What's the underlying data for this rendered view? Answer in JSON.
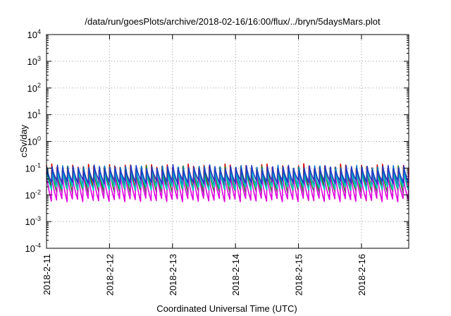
{
  "chart_data": {
    "type": "line",
    "title": "/data/run/goesPlots/archive/2018-02-16/16:00/flux/../bryn/5daysMars.plot",
    "xlabel": "Coordinated Universal Time (UTC)",
    "ylabel": "cSv/day",
    "yscale": "log",
    "ylim": [
      0.0001,
      10000
    ],
    "y_ticks": [
      {
        "base": "10",
        "exp": "-4",
        "value": 0.0001
      },
      {
        "base": "10",
        "exp": "-3",
        "value": 0.001
      },
      {
        "base": "10",
        "exp": "-2",
        "value": 0.01
      },
      {
        "base": "10",
        "exp": "-1",
        "value": 0.1
      },
      {
        "base": "10",
        "exp": "0",
        "value": 1
      },
      {
        "base": "10",
        "exp": "1",
        "value": 10
      },
      {
        "base": "10",
        "exp": "2",
        "value": 100
      },
      {
        "base": "10",
        "exp": "3",
        "value": 1000
      },
      {
        "base": "10",
        "exp": "4",
        "value": 10000
      }
    ],
    "xlim": [
      "2018-02-11",
      "2018-02-16 18:00"
    ],
    "x_ticks": [
      "2018-2-11",
      "2018-2-12",
      "2018-2-13",
      "2018-2-14",
      "2018-2-15",
      "2018-2-16"
    ],
    "grid": true,
    "sawtooth_period_hours": 2,
    "series": [
      {
        "color": "#d40000",
        "peak": 0.115,
        "trough": 0.02
      },
      {
        "color": "#1a8a1a",
        "peak": 0.095,
        "trough": 0.013
      },
      {
        "color": "#0078c8",
        "peak": 0.1,
        "trough": 0.024
      },
      {
        "color": "#e000e0",
        "peak": 0.06,
        "trough": 0.0065
      },
      {
        "color": "#00c8c8",
        "peak": 0.08,
        "trough": 0.018
      },
      {
        "color": "#1e3cc8",
        "peak": 0.105,
        "trough": 0.03
      }
    ]
  }
}
